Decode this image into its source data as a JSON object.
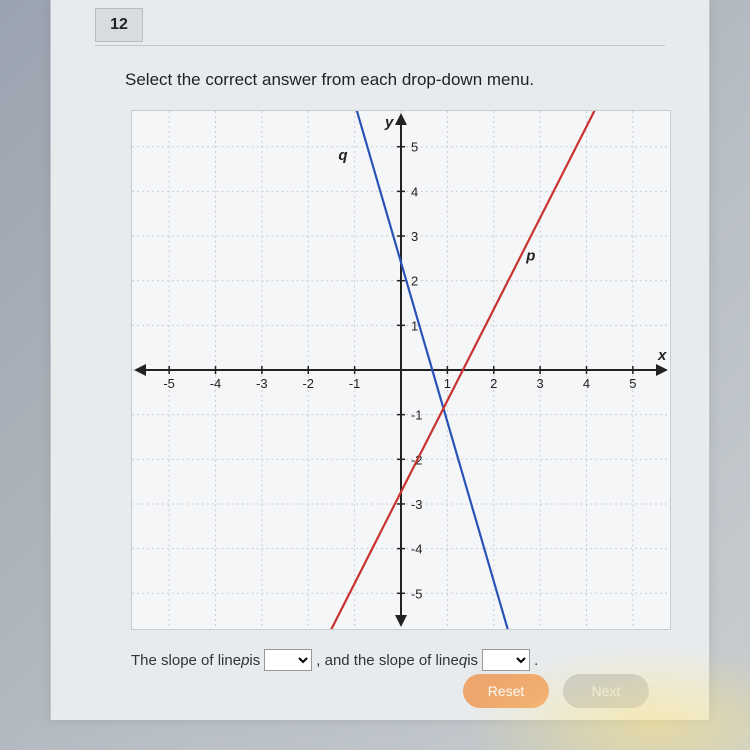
{
  "question_number": "12",
  "instruction": "Select the correct answer from each drop-down menu.",
  "graph": {
    "background_color": "#f4f6f8",
    "grid_color": "#c8ccd2",
    "axis_color": "#222222",
    "xlim": [
      -5.8,
      5.8
    ],
    "ylim": [
      -5.8,
      5.8
    ],
    "tick_step": 1,
    "x_ticks": [
      "-5",
      "-4",
      "-3",
      "-2",
      "-1",
      "",
      "1",
      "2",
      "3",
      "4",
      "5"
    ],
    "y_ticks": [
      "-5",
      "-4",
      "-3",
      "-2",
      "-1",
      "",
      "1",
      "2",
      "3",
      "4",
      "5"
    ],
    "x_axis_label": "x",
    "y_axis_label": "y",
    "lines": {
      "p": {
        "label": "p",
        "label_pos": [
          2.7,
          2.45
        ],
        "color": "#c8322f",
        "width": 2.2,
        "points": [
          [
            -1.5,
            -5.8
          ],
          [
            4.17,
            5.8
          ]
        ],
        "slope_sign": "positive"
      },
      "q": {
        "label": "q",
        "label_pos": [
          -1.35,
          4.7
        ],
        "color": "#2952b8",
        "width": 2.2,
        "points": [
          [
            -0.95,
            5.8
          ],
          [
            2.3,
            -5.8
          ]
        ],
        "slope_sign": "negative"
      }
    },
    "tick_fontsize": 13,
    "label_fontsize": 15
  },
  "sentence": {
    "part1": "The slope of line ",
    "var_p": "p",
    "part2": " is ",
    "part3": " , and the slope of line ",
    "var_q": "q",
    "part4": " is ",
    "period": " ."
  },
  "buttons": {
    "reset": "Reset",
    "next": "Next"
  }
}
